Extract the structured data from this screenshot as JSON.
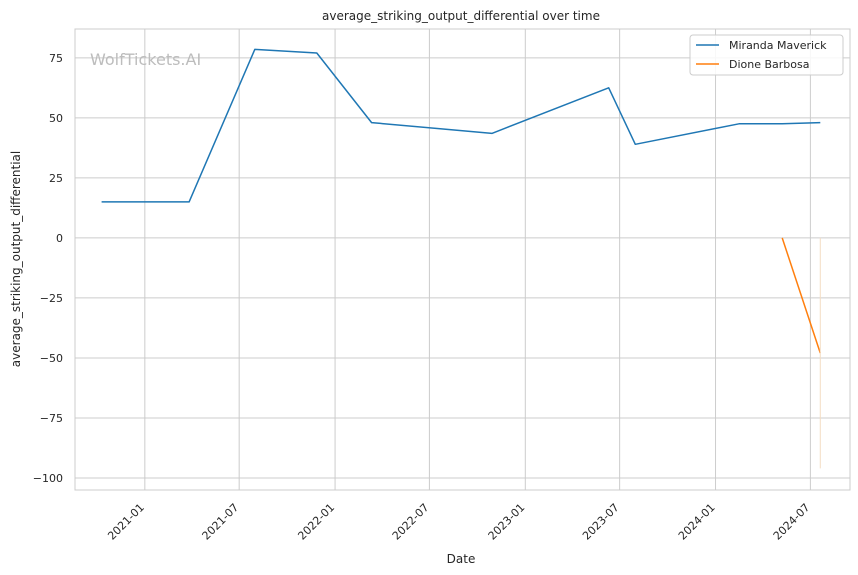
{
  "chart_data": {
    "type": "line",
    "title": "average_striking_output_differential over time",
    "xlabel": "Date",
    "ylabel": "average_striking_output_differential",
    "watermark": "WolfTickets.AI",
    "ylim": [
      -105,
      87
    ],
    "xlim": [
      "2020-08-20",
      "2024-09-15"
    ],
    "grid": true,
    "legend_position": "top-right",
    "x_ticks": [
      "2021-01",
      "2021-07",
      "2022-01",
      "2022-07",
      "2023-01",
      "2023-07",
      "2024-01",
      "2024-07"
    ],
    "y_ticks": [
      75,
      50,
      25,
      0,
      -25,
      -50,
      -75,
      -100
    ],
    "y_tick_labels": [
      "75",
      "50",
      "25",
      "0",
      "−25",
      "−50",
      "−75",
      "−100"
    ],
    "series": [
      {
        "name": "Miranda Maverick",
        "color": "#1f77b4",
        "x": [
          "2020-10-10",
          "2021-03-27",
          "2021-07-31",
          "2021-11-27",
          "2022-03-12",
          "2022-10-29",
          "2023-06-10",
          "2023-07-31",
          "2024-02-15",
          "2024-05-08",
          "2024-07-20"
        ],
        "y": [
          15,
          15,
          78.5,
          77,
          48,
          43.5,
          62.5,
          39,
          47.5,
          47.5,
          48
        ]
      },
      {
        "name": "Dione Barbosa",
        "color": "#ff7f0e",
        "x": [
          "2024-05-08",
          "2024-07-20"
        ],
        "y": [
          0,
          -48
        ]
      }
    ]
  }
}
